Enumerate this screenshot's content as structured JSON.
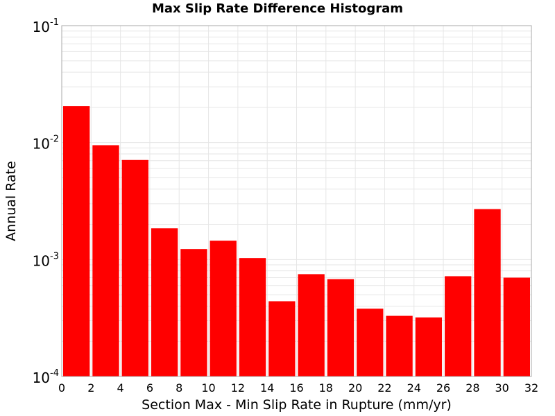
{
  "chart_data": {
    "type": "bar",
    "title": "Max Slip Rate Difference Histogram",
    "xlabel": "Section Max - Min Slip Rate in Rupture (mm/yr)",
    "ylabel": "Annual Rate",
    "y_scale": "log",
    "ylim": [
      0.0001,
      0.1
    ],
    "xlim": [
      0,
      32
    ],
    "x_ticks": [
      "0",
      "2",
      "4",
      "6",
      "8",
      "10",
      "12",
      "14",
      "16",
      "18",
      "20",
      "22",
      "24",
      "26",
      "28",
      "30",
      "32"
    ],
    "y_ticks": [
      {
        "base": "10",
        "exp": "-4"
      },
      {
        "base": "10",
        "exp": "-3"
      },
      {
        "base": "10",
        "exp": "-2"
      },
      {
        "base": "10",
        "exp": "-1"
      }
    ],
    "bin_width": 2,
    "bin_starts": [
      0,
      2,
      4,
      6,
      8,
      10,
      12,
      14,
      16,
      18,
      20,
      22,
      24,
      26,
      28,
      30
    ],
    "values": [
      0.0205,
      0.0095,
      0.0071,
      0.00185,
      0.00123,
      0.00145,
      0.00103,
      0.00044,
      0.00075,
      0.00068,
      0.00038,
      0.00033,
      0.00032,
      0.00072,
      0.0027,
      0.0007
    ],
    "bar_color": "#ff0000",
    "grid": true
  }
}
